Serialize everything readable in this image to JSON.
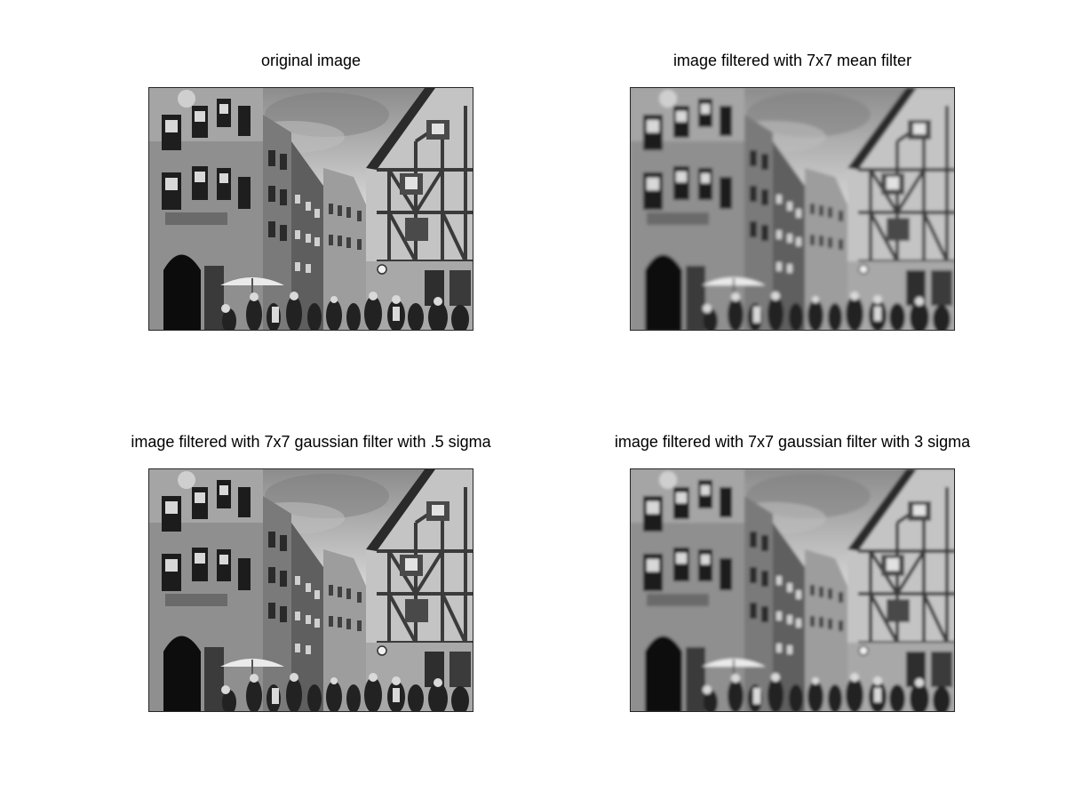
{
  "figure": {
    "panels": [
      {
        "title": "original image",
        "image": "street-scene-grayscale",
        "filter": "none"
      },
      {
        "title": "image filtered with 7x7 mean filter",
        "image": "street-scene-grayscale",
        "filter": "mean"
      },
      {
        "title": "image filtered with 7x7 gaussian filter with .5 sigma",
        "image": "street-scene-grayscale",
        "filter": "gaussian-small"
      },
      {
        "title": "image filtered with 7x7 gaussian filter with 3 sigma",
        "image": "street-scene-grayscale",
        "filter": "gaussian-large"
      }
    ]
  }
}
